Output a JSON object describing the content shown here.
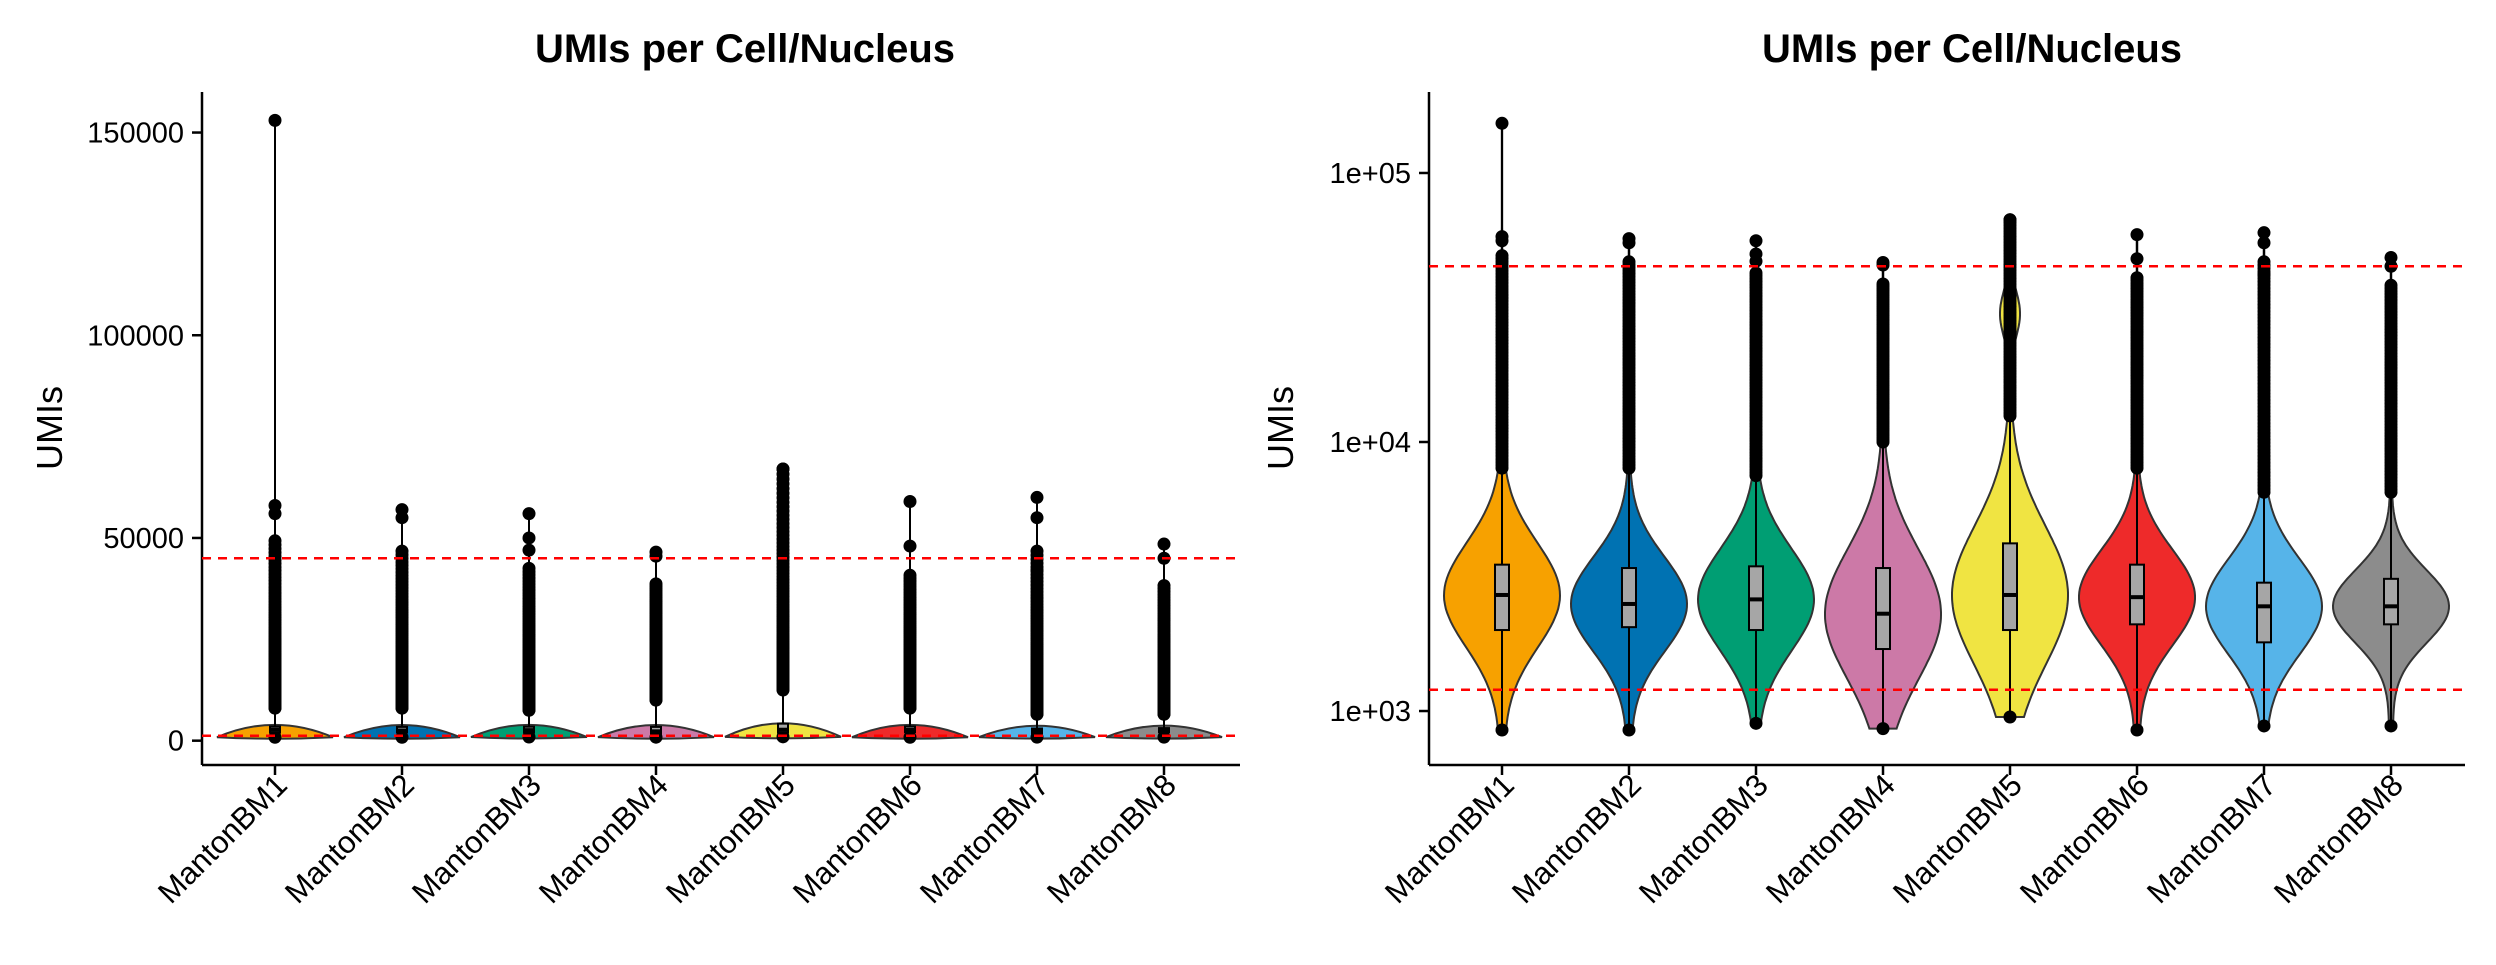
{
  "colors": {
    "MantonBM1": "#F7A100",
    "MantonBM2": "#0072B2",
    "MantonBM3": "#009E73",
    "MantonBM4": "#CC79A7",
    "MantonBM5": "#F0E442",
    "MantonBM6": "#EE2A2A",
    "MantonBM7": "#56B4E9",
    "MantonBM8": "#8C8C8C",
    "threshold_line": "#FF0000",
    "box_fill": "#A6A6A6"
  },
  "chart_data": [
    {
      "type": "violin",
      "title": "UMIs per Cell/Nucleus",
      "ylabel": "UMIs",
      "xlabel": "",
      "y_scale": "linear",
      "ylim": [
        -6000,
        160000
      ],
      "y_ticks": [
        0,
        50000,
        100000,
        150000
      ],
      "y_tick_labels": [
        "0",
        "50000",
        "100000",
        "150000"
      ],
      "categories": [
        "MantonBM1",
        "MantonBM2",
        "MantonBM3",
        "MantonBM4",
        "MantonBM5",
        "MantonBM6",
        "MantonBM7",
        "MantonBM8"
      ],
      "thresholds": [
        45000,
        1200
      ],
      "grid": false,
      "legend": "none",
      "summary": [
        {
          "name": "MantonBM1",
          "min": 850,
          "q1": 2000,
          "median": 2700,
          "q3": 3500,
          "max": 153000,
          "outlier_start": 8000,
          "top_points": [
            58000,
            56000
          ]
        },
        {
          "name": "MantonBM2",
          "min": 850,
          "q1": 2050,
          "median": 2500,
          "q3": 3400,
          "max": 57000,
          "outlier_start": 8000,
          "top_points": [
            55000
          ]
        },
        {
          "name": "MantonBM3",
          "min": 900,
          "q1": 2000,
          "median": 2600,
          "q3": 3450,
          "max": 56000,
          "outlier_start": 7500,
          "top_points": [
            50000,
            47000
          ]
        },
        {
          "name": "MantonBM4",
          "min": 860,
          "q1": 1700,
          "median": 2300,
          "q3": 3400,
          "max": 46500,
          "outlier_start": 10000,
          "top_points": [
            45500
          ]
        },
        {
          "name": "MantonBM5",
          "min": 950,
          "q1": 2000,
          "median": 2700,
          "q3": 4200,
          "max": 67000,
          "outlier_start": 12500,
          "top_points": []
        },
        {
          "name": "MantonBM6",
          "min": 850,
          "q1": 2100,
          "median": 2650,
          "q3": 3500,
          "max": 59000,
          "outlier_start": 8000,
          "top_points": [
            48000
          ]
        },
        {
          "name": "MantonBM7",
          "min": 880,
          "q1": 1800,
          "median": 2450,
          "q3": 3000,
          "max": 60000,
          "outlier_start": 6500,
          "top_points": [
            55000,
            42000
          ]
        },
        {
          "name": "MantonBM8",
          "min": 880,
          "q1": 2100,
          "median": 2450,
          "q3": 3100,
          "max": 48500,
          "outlier_start": 6500,
          "top_points": [
            45000
          ]
        }
      ]
    },
    {
      "type": "violin",
      "title": "UMIs per Cell/Nucleus",
      "ylabel": "UMIs",
      "xlabel": "",
      "y_scale": "log10",
      "ylim": [
        630,
        200000
      ],
      "y_ticks": [
        1000,
        10000,
        100000
      ],
      "y_tick_labels": [
        "1e+03",
        "1e+04",
        "1e+05"
      ],
      "categories": [
        "MantonBM1",
        "MantonBM2",
        "MantonBM3",
        "MantonBM4",
        "MantonBM5",
        "MantonBM6",
        "MantonBM7",
        "MantonBM8"
      ],
      "thresholds": [
        45000,
        1200
      ],
      "grid": false,
      "legend": "none",
      "summary": [
        {
          "name": "MantonBM1",
          "min": 850,
          "q1": 2000,
          "median": 2700,
          "q3": 3500,
          "max": 153000,
          "outlier_start": 8000,
          "top_points": [
            58000,
            56000
          ]
        },
        {
          "name": "MantonBM2",
          "min": 850,
          "q1": 2050,
          "median": 2500,
          "q3": 3400,
          "max": 57000,
          "outlier_start": 8000,
          "top_points": [
            55000
          ]
        },
        {
          "name": "MantonBM3",
          "min": 900,
          "q1": 2000,
          "median": 2600,
          "q3": 3450,
          "max": 56000,
          "outlier_start": 7500,
          "top_points": [
            50000,
            47000
          ]
        },
        {
          "name": "MantonBM4",
          "min": 860,
          "q1": 1700,
          "median": 2300,
          "q3": 3400,
          "max": 46500,
          "outlier_start": 10000,
          "top_points": [
            45500
          ]
        },
        {
          "name": "MantonBM5",
          "min": 950,
          "q1": 2000,
          "median": 2700,
          "q3": 4200,
          "max": 67000,
          "outlier_start": 12500,
          "top_points": []
        },
        {
          "name": "MantonBM6",
          "min": 850,
          "q1": 2100,
          "median": 2650,
          "q3": 3500,
          "max": 59000,
          "outlier_start": 8000,
          "top_points": [
            48000
          ]
        },
        {
          "name": "MantonBM7",
          "min": 880,
          "q1": 1800,
          "median": 2450,
          "q3": 3000,
          "max": 60000,
          "outlier_start": 6500,
          "top_points": [
            55000,
            42000
          ]
        },
        {
          "name": "MantonBM8",
          "min": 880,
          "q1": 2100,
          "median": 2450,
          "q3": 3100,
          "max": 48500,
          "outlier_start": 6500,
          "top_points": [
            45000
          ]
        }
      ]
    }
  ]
}
